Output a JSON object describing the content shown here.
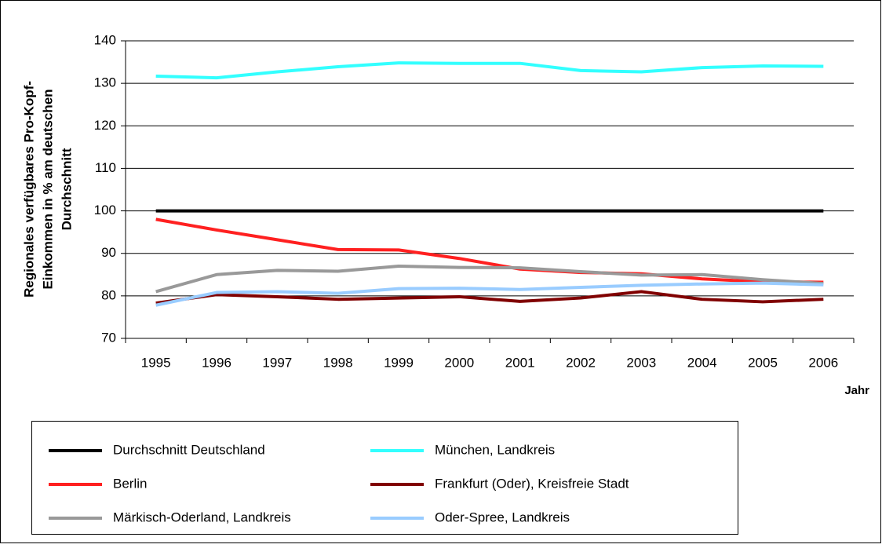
{
  "chart_data": {
    "type": "line",
    "y_label": [
      "Regionales verfügbares Pro-Kopf-",
      "Einkommen in % am deutschen",
      "Durchschnitt"
    ],
    "x_label": "Jahr",
    "categories": [
      "1995",
      "1996",
      "1997",
      "1998",
      "1999",
      "2000",
      "2001",
      "2002",
      "2003",
      "2004",
      "2005",
      "2006"
    ],
    "ylim": [
      70,
      140
    ],
    "yticks": [
      70,
      80,
      90,
      100,
      110,
      120,
      130,
      140
    ],
    "grid": true,
    "legend": "bottom",
    "series": [
      {
        "name": "Durchschnitt Deutschland",
        "color": "#000000",
        "values": [
          100,
          100,
          100,
          100,
          100,
          100,
          100,
          100,
          100,
          100,
          100,
          100
        ]
      },
      {
        "name": "München, Landkreis",
        "color": "#33ffff",
        "values": [
          131.7,
          131.3,
          132.7,
          133.9,
          134.8,
          134.7,
          134.7,
          133.0,
          132.7,
          133.7,
          134.1,
          134.0
        ]
      },
      {
        "name": "Berlin",
        "color": "#ff2020",
        "values": [
          98,
          95.5,
          93.2,
          90.9,
          90.8,
          88.8,
          86.3,
          85.5,
          85.2,
          84,
          83.3,
          83.2
        ]
      },
      {
        "name": "Frankfurt (Oder), Kreisfreie Stadt",
        "color": "#800000",
        "values": [
          78.3,
          80.3,
          79.8,
          79.2,
          79.5,
          79.8,
          78.7,
          79.5,
          81,
          79.2,
          78.6,
          79.2
        ]
      },
      {
        "name": "Märkisch-Oderland, Landkreis",
        "color": "#999999",
        "values": [
          81,
          85,
          86,
          85.8,
          87,
          86.7,
          86.6,
          85.7,
          84.9,
          85,
          83.8,
          82.9
        ]
      },
      {
        "name": "Oder-Spree, Landkreis",
        "color": "#99ccff",
        "values": [
          77.8,
          80.8,
          81,
          80.6,
          81.7,
          81.8,
          81.5,
          82,
          82.5,
          82.8,
          83,
          82.6
        ]
      }
    ]
  }
}
